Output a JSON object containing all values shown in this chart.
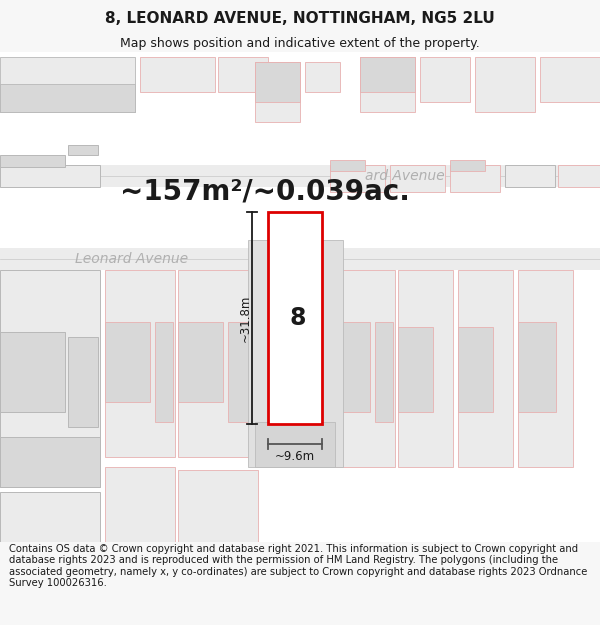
{
  "title": "8, LEONARD AVENUE, NOTTINGHAM, NG5 2LU",
  "subtitle": "Map shows position and indicative extent of the property.",
  "area_text": "~157m²/~0.039ac.",
  "property_number": "8",
  "dim_height": "~31.8m",
  "dim_width": "~9.6m",
  "bg_color": "#f7f7f7",
  "map_bg": "#ffffff",
  "road_color_light": "#e5e5e5",
  "road_color_dark": "#d8d8d8",
  "bld_fill_light": "#ebebeb",
  "bld_fill_dark": "#d8d8d8",
  "bld_outline_pink": "#e8b0b0",
  "bld_outline_gray": "#b8b8b8",
  "plot_outline_color": "#dd0000",
  "street_label_color": "#aaaaaa",
  "street_label_1": "Leonard Avenue",
  "street_label_2": "ard Avenue",
  "footer_text": "Contains OS data © Crown copyright and database right 2021. This information is subject to Crown copyright and database rights 2023 and is reproduced with the permission of HM Land Registry. The polygons (including the associated geometry, namely x, y co-ordinates) are subject to Crown copyright and database rights 2023 Ordnance Survey 100026316.",
  "title_fontsize": 11,
  "subtitle_fontsize": 9,
  "area_fontsize": 20,
  "footer_fontsize": 7.2
}
